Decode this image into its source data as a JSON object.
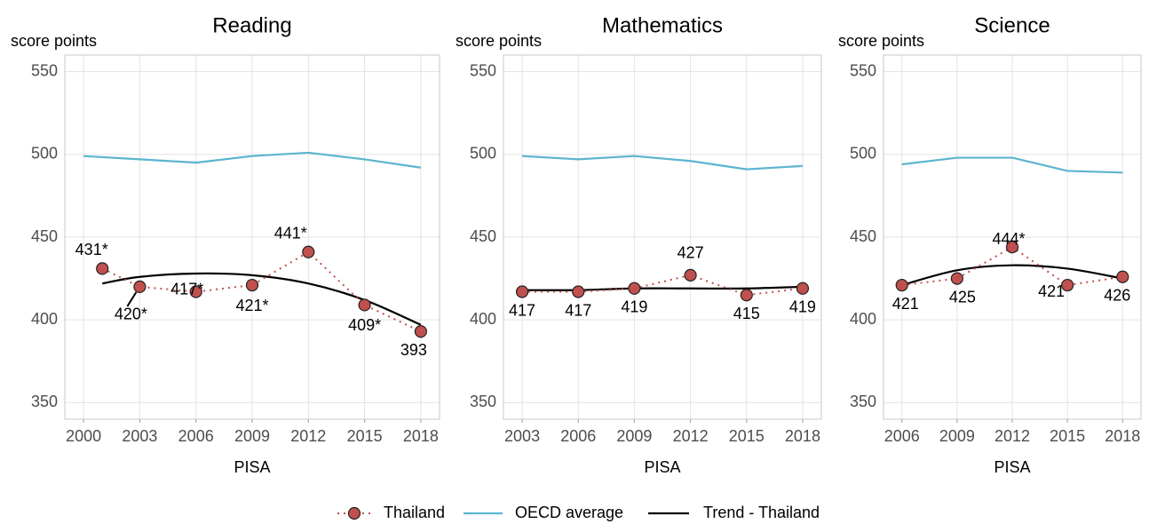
{
  "chart_data": [
    {
      "type": "line",
      "title": "Reading",
      "y_label": "score points",
      "x_label": "PISA",
      "xlim": [
        1999,
        2019
      ],
      "xticks": [
        2000,
        2003,
        2006,
        2009,
        2012,
        2015,
        2018
      ],
      "ylim": [
        340,
        560
      ],
      "yticks": [
        350,
        400,
        450,
        500,
        550
      ],
      "grid": true,
      "series": [
        {
          "name": "Thailand",
          "color": "#c0504d",
          "x": [
            2001,
            2003,
            2006,
            2009,
            2012,
            2015,
            2018
          ],
          "values": [
            431,
            420,
            417,
            421,
            441,
            409,
            393
          ],
          "value_labels": [
            "431*",
            "420*",
            "417*",
            "421*",
            "441*",
            "409*",
            "393"
          ]
        },
        {
          "name": "OECD average",
          "color": "#5bb5cf",
          "x": [
            2000,
            2003,
            2006,
            2009,
            2012,
            2015,
            2018
          ],
          "values": [
            499,
            497,
            495,
            499,
            501,
            497,
            492
          ]
        },
        {
          "name": "Trend - Thailand",
          "color": "#000000",
          "x": [
            2001,
            2003,
            2006,
            2009,
            2012,
            2015,
            2018
          ],
          "values": [
            422,
            426,
            428,
            427,
            422,
            412,
            397
          ]
        }
      ]
    },
    {
      "type": "line",
      "title": "Mathematics",
      "y_label": "score points",
      "x_label": "PISA",
      "xlim": [
        2002,
        2019
      ],
      "xticks": [
        2003,
        2006,
        2009,
        2012,
        2015,
        2018
      ],
      "ylim": [
        340,
        560
      ],
      "yticks": [
        350,
        400,
        450,
        500,
        550
      ],
      "grid": true,
      "series": [
        {
          "name": "Thailand",
          "color": "#c0504d",
          "x": [
            2003,
            2006,
            2009,
            2012,
            2015,
            2018
          ],
          "values": [
            417,
            417,
            419,
            427,
            415,
            419
          ]
        },
        {
          "name": "OECD average",
          "color": "#5bb5cf",
          "x": [
            2003,
            2006,
            2009,
            2012,
            2015,
            2018
          ],
          "values": [
            499,
            497,
            499,
            496,
            491,
            493
          ]
        },
        {
          "name": "Trend - Thailand",
          "color": "#000000",
          "x": [
            2003,
            2006,
            2009,
            2012,
            2015,
            2018
          ],
          "values": [
            418,
            418,
            419,
            419,
            419,
            420
          ]
        }
      ]
    },
    {
      "type": "line",
      "title": "Science",
      "y_label": "score points",
      "x_label": "PISA",
      "xlim": [
        2005,
        2019
      ],
      "xticks": [
        2006,
        2009,
        2012,
        2015,
        2018
      ],
      "ylim": [
        340,
        560
      ],
      "yticks": [
        350,
        400,
        450,
        500,
        550
      ],
      "grid": true,
      "series": [
        {
          "name": "Thailand",
          "color": "#c0504d",
          "x": [
            2006,
            2009,
            2012,
            2015,
            2018
          ],
          "values": [
            421,
            425,
            444,
            421,
            426
          ],
          "value_labels": [
            "421",
            "425",
            "444*",
            "421",
            "426"
          ]
        },
        {
          "name": "OECD average",
          "color": "#5bb5cf",
          "x": [
            2006,
            2009,
            2012,
            2015,
            2018
          ],
          "values": [
            494,
            498,
            498,
            490,
            489
          ]
        },
        {
          "name": "Trend - Thailand",
          "color": "#000000",
          "x": [
            2006,
            2009,
            2012,
            2015,
            2018
          ],
          "values": [
            421,
            430,
            433,
            431,
            425
          ]
        }
      ]
    }
  ]
}
